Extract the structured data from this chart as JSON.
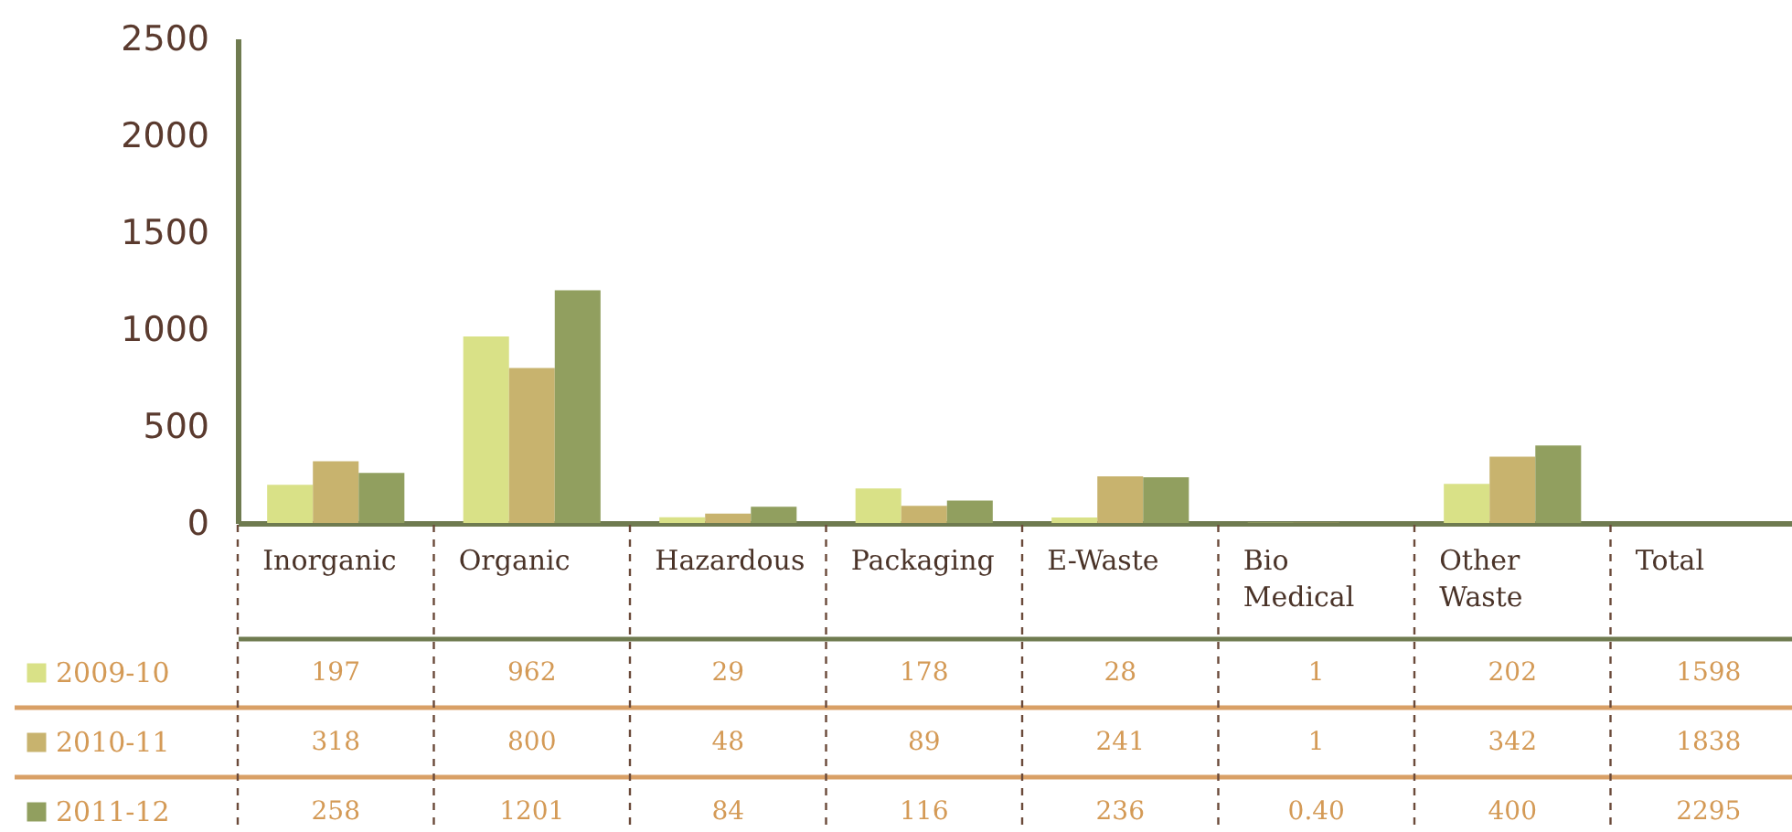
{
  "chart_data": {
    "type": "bar",
    "categories": [
      "Inorganic",
      "Organic",
      "Hazardous",
      "Packaging",
      "E-Waste",
      "Bio Medical",
      "Other Waste",
      "Total"
    ],
    "series": [
      {
        "name": "2009-10",
        "color": "#d9e187",
        "values": [
          197,
          962,
          29,
          178,
          28,
          1,
          202,
          null
        ],
        "value_labels": [
          "197",
          "962",
          "29",
          "178",
          "28",
          "1",
          "202",
          "1598"
        ]
      },
      {
        "name": "2010-11",
        "color": "#c8b36e",
        "values": [
          318,
          800,
          48,
          89,
          241,
          1,
          342,
          null
        ],
        "value_labels": [
          "318",
          "800",
          "48",
          "89",
          "241",
          "1",
          "342",
          "1838"
        ]
      },
      {
        "name": "2011-12",
        "color": "#919f5f",
        "values": [
          258,
          1201,
          84,
          116,
          236,
          0.4,
          400,
          null
        ],
        "value_labels": [
          "258",
          "1201",
          "84",
          "116",
          "236",
          "0.40",
          "400",
          "2295"
        ]
      }
    ],
    "ylim": [
      0,
      2500
    ],
    "yticks": [
      0,
      500,
      1000,
      1500,
      2000,
      2500
    ],
    "grid": false,
    "legend": "bottom left"
  }
}
